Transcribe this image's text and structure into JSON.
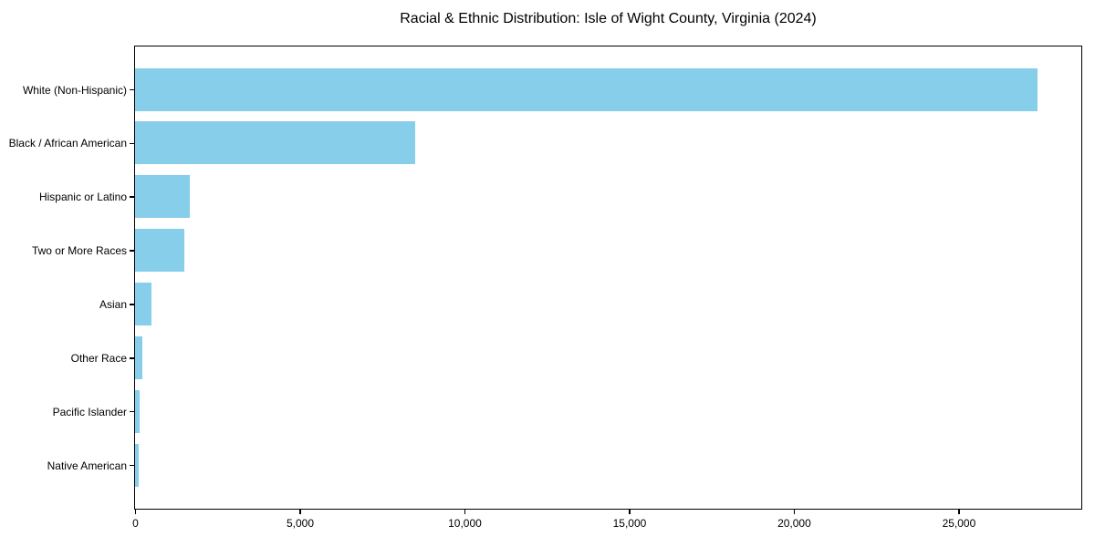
{
  "chart_data": {
    "type": "bar",
    "orientation": "horizontal",
    "title": "Racial & Ethnic Distribution: Isle of Wight County, Virginia (2024)",
    "categories": [
      "White (Non-Hispanic)",
      "Black / African American",
      "Hispanic or Latino",
      "Two or More Races",
      "Asian",
      "Other Race",
      "Pacific Islander",
      "Native American"
    ],
    "values": [
      27400,
      8500,
      1650,
      1500,
      500,
      220,
      140,
      100
    ],
    "xlabel": "",
    "ylabel": "",
    "xlim": [
      0,
      28700
    ],
    "x_ticks": [
      0,
      5000,
      10000,
      15000,
      20000,
      25000
    ],
    "x_tick_labels": [
      "0",
      "5,000",
      "10,000",
      "15,000",
      "20,000",
      "25,000"
    ],
    "bar_color": "#87CEEB",
    "axis_color": "#000000",
    "grid": false,
    "legend": null
  }
}
